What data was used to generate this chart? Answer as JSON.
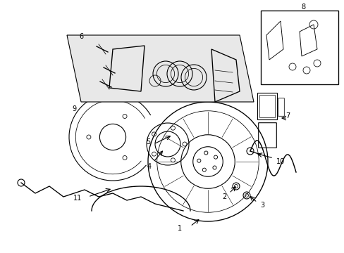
{
  "background_color": "#ffffff",
  "line_color": "#000000",
  "fill_color": "#e8e8e8",
  "label_fontsize": 7,
  "parts": [
    {
      "id": 1,
      "label": "1"
    },
    {
      "id": 2,
      "label": "2"
    },
    {
      "id": 3,
      "label": "3"
    },
    {
      "id": 4,
      "label": "4"
    },
    {
      "id": 5,
      "label": "5"
    },
    {
      "id": 6,
      "label": "6"
    },
    {
      "id": 7,
      "label": "7"
    },
    {
      "id": 8,
      "label": "8"
    },
    {
      "id": 9,
      "label": "9"
    },
    {
      "id": 10,
      "label": "10"
    },
    {
      "id": 11,
      "label": "11"
    }
  ]
}
